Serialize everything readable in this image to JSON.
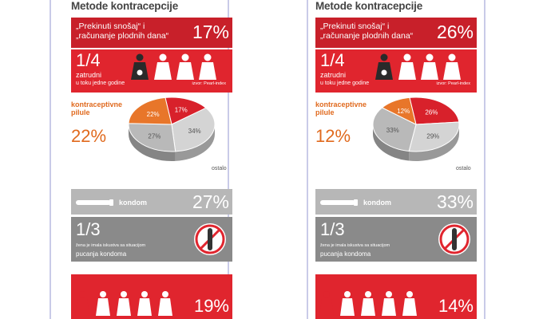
{
  "panels": [
    {
      "heading": "Metode kontracepcije",
      "withdrawal": {
        "label_line1": "„Prekinuti snošaj“ i",
        "label_line2": "„računanje plodnih dana“",
        "percent": "17%"
      },
      "pregnancy": {
        "fraction": "1/4",
        "line1": "zatrudni",
        "line2": "u toku jedne godine",
        "source": "izvor: Pearl-index"
      },
      "pill": {
        "label_line1": "kontraceptivne",
        "label_line2": "pilule",
        "percent": "22%"
      },
      "other_label": "ostalo",
      "condom": {
        "label": "kondom",
        "percent": "27%"
      },
      "breakage": {
        "fraction": "1/3",
        "line1": "žena je imala iskustva sa situacijom",
        "line2": "pucanja kondoma"
      },
      "bottom": {
        "percent": "19%"
      }
    },
    {
      "heading": "Metode kontracepcije",
      "withdrawal": {
        "label_line1": "„Prekinuti snošaj“ i",
        "label_line2": "„računanje plodnih dana“",
        "percent": "26%"
      },
      "pregnancy": {
        "fraction": "1/4",
        "line1": "zatrudni",
        "line2": "u toku jedne godine",
        "source": "izvor: Pearl-index"
      },
      "pill": {
        "label_line1": "kontraceptivne",
        "label_line2": "pilule",
        "percent": "12%"
      },
      "other_label": "ostalo",
      "condom": {
        "label": "kondom",
        "percent": "33%"
      },
      "breakage": {
        "fraction": "1/3",
        "line1": "žena je imala iskustva sa situacijom",
        "line2": "pucanja kondoma"
      },
      "bottom": {
        "percent": "14%"
      }
    }
  ],
  "chart_data": [
    {
      "type": "pie",
      "categories": [
        "„Prekinuti snošaj“ i „računanje plodnih dana“",
        "ostalo",
        "kondom",
        "kontraceptivne pilule"
      ],
      "values": [
        17,
        34,
        27,
        22
      ],
      "labels": [
        "17%",
        "34%",
        "27%",
        "22%"
      ],
      "colors": [
        "#d8212b",
        "#d4d4d4",
        "#b9b9b9",
        "#e8762a"
      ]
    },
    {
      "type": "pie",
      "categories": [
        "„Prekinuti snošaj“ i „računanje plodnih dana“",
        "ostalo",
        "kondom",
        "kontraceptivne pilule"
      ],
      "values": [
        26,
        29,
        33,
        12
      ],
      "labels": [
        "26%",
        "29%",
        "33%",
        "12%"
      ],
      "colors": [
        "#d8212b",
        "#d4d4d4",
        "#b9b9b9",
        "#e8762a"
      ]
    }
  ]
}
